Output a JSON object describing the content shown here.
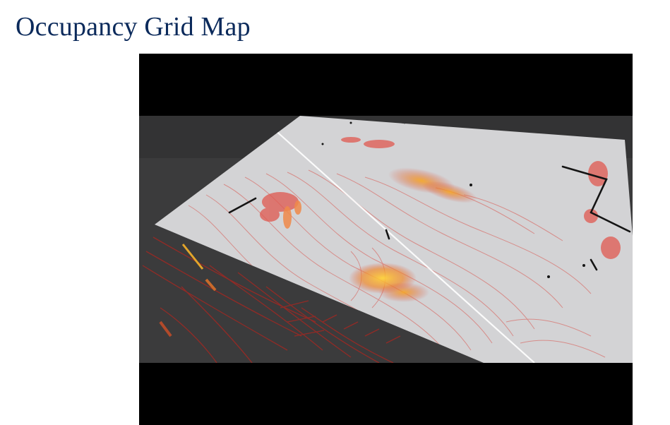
{
  "slide": {
    "title": "Occupancy Grid Map"
  },
  "video": {
    "description_icon": "point-cloud-visualization",
    "colors": {
      "letterbox": "#000000",
      "background": "#3a3a3a",
      "grid_plane": "#d2d2d4",
      "contour_lines": "#c8453f",
      "hot_points": "#f6a623",
      "obstacles": "#111111"
    }
  }
}
